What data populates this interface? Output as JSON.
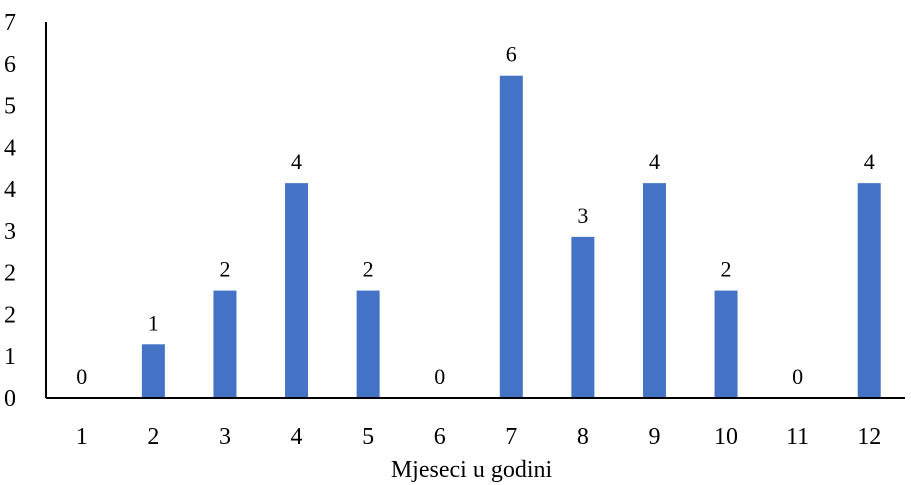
{
  "chart_data": {
    "type": "bar",
    "categories": [
      "1",
      "2",
      "3",
      "4",
      "5",
      "6",
      "7",
      "8",
      "9",
      "10",
      "11",
      "12"
    ],
    "values": [
      0,
      1,
      2,
      4,
      2,
      0,
      6,
      3,
      4,
      2,
      0,
      4
    ],
    "data_labels": [
      "0",
      "1",
      "2",
      "4",
      "2",
      "0",
      "6",
      "3",
      "4",
      "2",
      "0",
      "4"
    ],
    "y_tick_labels": [
      "0",
      "1",
      "2",
      "2",
      "3",
      "4",
      "4",
      "5",
      "6",
      "7"
    ],
    "title": "",
    "xlabel": "Mjeseci u godini",
    "ylabel": "",
    "ylim": [
      0,
      7
    ],
    "grid": false,
    "legend": "none",
    "bar_color": "#4472C4",
    "axis_color": "#000000"
  }
}
